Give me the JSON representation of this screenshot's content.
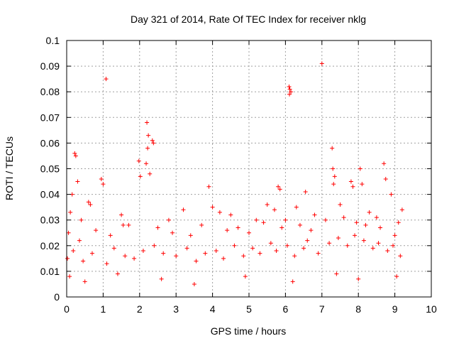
{
  "chart_data": {
    "type": "scatter",
    "title": "Day 321 of 2014, Rate Of TEC Index for receiver nklg",
    "xlabel": "GPS time / hours",
    "ylabel": "ROTI / TECUs",
    "xlim": [
      0,
      10
    ],
    "ylim": [
      0,
      0.1
    ],
    "xticks": [
      0,
      1,
      2,
      3,
      4,
      5,
      6,
      7,
      8,
      9,
      10
    ],
    "xtick_labels": [
      "0",
      "1",
      "2",
      "3",
      "4",
      "5",
      "6",
      "7",
      "8",
      "9",
      "10"
    ],
    "yticks": [
      0,
      0.01,
      0.02,
      0.03,
      0.04,
      0.05,
      0.06,
      0.07,
      0.08,
      0.09,
      0.1
    ],
    "ytick_labels": [
      "0",
      "0.01",
      "0.02",
      "0.03",
      "0.04",
      "0.05",
      "0.06",
      "0.07",
      "0.08",
      "0.09",
      "0.1"
    ],
    "grid": true,
    "marker": "+",
    "color": "#ff0000",
    "series": [
      {
        "name": "ROTI",
        "x": [
          1.08,
          7.0,
          6.1,
          6.12,
          6.15,
          6.11,
          2.2,
          2.24,
          2.22,
          2.35,
          2.38,
          0.22,
          0.25,
          7.28,
          2.18,
          2.28,
          1.98,
          2.02,
          7.3,
          7.35,
          8.7,
          8.75,
          0.3,
          0.95,
          1.0,
          3.9,
          7.32,
          7.8,
          7.85,
          5.8,
          5.85,
          6.55,
          8.05,
          8.1,
          0.15,
          0.6,
          0.65,
          1.5,
          4.0,
          5.5,
          8.9,
          9.2,
          0.1,
          0.4,
          1.55,
          2.8,
          3.2,
          4.2,
          4.5,
          5.2,
          5.7,
          6.0,
          6.3,
          6.8,
          7.5,
          8.3,
          8.5,
          9.1,
          0.05,
          0.35,
          0.8,
          1.2,
          1.7,
          2.5,
          2.9,
          3.4,
          3.7,
          4.4,
          4.7,
          5.0,
          5.4,
          5.9,
          6.4,
          6.7,
          7.1,
          7.6,
          7.95,
          8.2,
          8.6,
          9.0,
          0.02,
          0.18,
          0.45,
          0.7,
          1.1,
          1.3,
          1.6,
          1.85,
          2.1,
          2.4,
          2.65,
          3.0,
          3.3,
          3.55,
          3.8,
          4.1,
          4.3,
          4.6,
          4.85,
          5.1,
          5.3,
          5.6,
          5.75,
          6.05,
          6.25,
          6.5,
          6.6,
          6.9,
          7.2,
          7.45,
          7.7,
          7.9,
          8.15,
          8.4,
          8.55,
          8.8,
          8.95,
          9.15,
          0.08,
          0.5,
          1.4,
          2.6,
          3.5,
          4.9,
          6.2,
          7.4,
          8.0,
          9.05
        ],
        "y": [
          0.085,
          0.091,
          0.082,
          0.081,
          0.08,
          0.079,
          0.068,
          0.063,
          0.058,
          0.061,
          0.06,
          0.056,
          0.055,
          0.058,
          0.052,
          0.048,
          0.053,
          0.047,
          0.05,
          0.047,
          0.052,
          0.046,
          0.045,
          0.046,
          0.044,
          0.043,
          0.044,
          0.045,
          0.043,
          0.043,
          0.042,
          0.041,
          0.05,
          0.044,
          0.04,
          0.037,
          0.036,
          0.032,
          0.035,
          0.036,
          0.04,
          0.034,
          0.033,
          0.03,
          0.028,
          0.03,
          0.034,
          0.033,
          0.032,
          0.03,
          0.034,
          0.03,
          0.035,
          0.032,
          0.036,
          0.033,
          0.031,
          0.029,
          0.025,
          0.022,
          0.026,
          0.024,
          0.028,
          0.027,
          0.025,
          0.024,
          0.028,
          0.026,
          0.027,
          0.025,
          0.029,
          0.027,
          0.028,
          0.026,
          0.03,
          0.031,
          0.029,
          0.028,
          0.027,
          0.024,
          0.015,
          0.018,
          0.014,
          0.017,
          0.013,
          0.019,
          0.016,
          0.015,
          0.018,
          0.02,
          0.017,
          0.016,
          0.019,
          0.014,
          0.017,
          0.018,
          0.015,
          0.02,
          0.016,
          0.019,
          0.017,
          0.021,
          0.018,
          0.02,
          0.016,
          0.019,
          0.022,
          0.017,
          0.021,
          0.023,
          0.02,
          0.024,
          0.022,
          0.019,
          0.021,
          0.018,
          0.02,
          0.016,
          0.008,
          0.006,
          0.009,
          0.007,
          0.005,
          0.008,
          0.006,
          0.009,
          0.007,
          0.008
        ]
      }
    ]
  }
}
